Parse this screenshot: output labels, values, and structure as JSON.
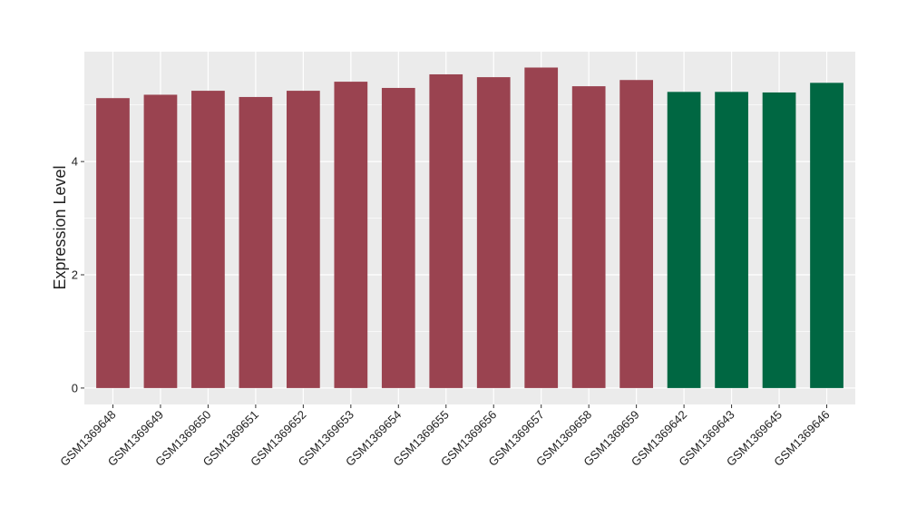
{
  "chart_data": {
    "type": "bar",
    "y_label": "Expression Level",
    "categories": [
      "GSM1369648",
      "GSM1369649",
      "GSM1369650",
      "GSM1369651",
      "GSM1369652",
      "GSM1369653",
      "GSM1369654",
      "GSM1369655",
      "GSM1369656",
      "GSM1369657",
      "GSM1369658",
      "GSM1369659",
      "GSM1369642",
      "GSM1369643",
      "GSM1369645",
      "GSM1369646"
    ],
    "values": [
      5.12,
      5.18,
      5.25,
      5.14,
      5.25,
      5.41,
      5.3,
      5.54,
      5.49,
      5.66,
      5.33,
      5.44,
      5.23,
      5.23,
      5.22,
      5.39
    ],
    "colors": [
      "#9a4350",
      "#9a4350",
      "#9a4350",
      "#9a4350",
      "#9a4350",
      "#9a4350",
      "#9a4350",
      "#9a4350",
      "#9a4350",
      "#9a4350",
      "#9a4350",
      "#9a4350",
      "#006742",
      "#006742",
      "#006742",
      "#006742"
    ],
    "ylim": [
      -0.29,
      5.94
    ],
    "yticks": [
      0,
      2,
      4
    ],
    "y_minor_ticks": [
      1,
      3,
      5
    ],
    "grid": true
  }
}
